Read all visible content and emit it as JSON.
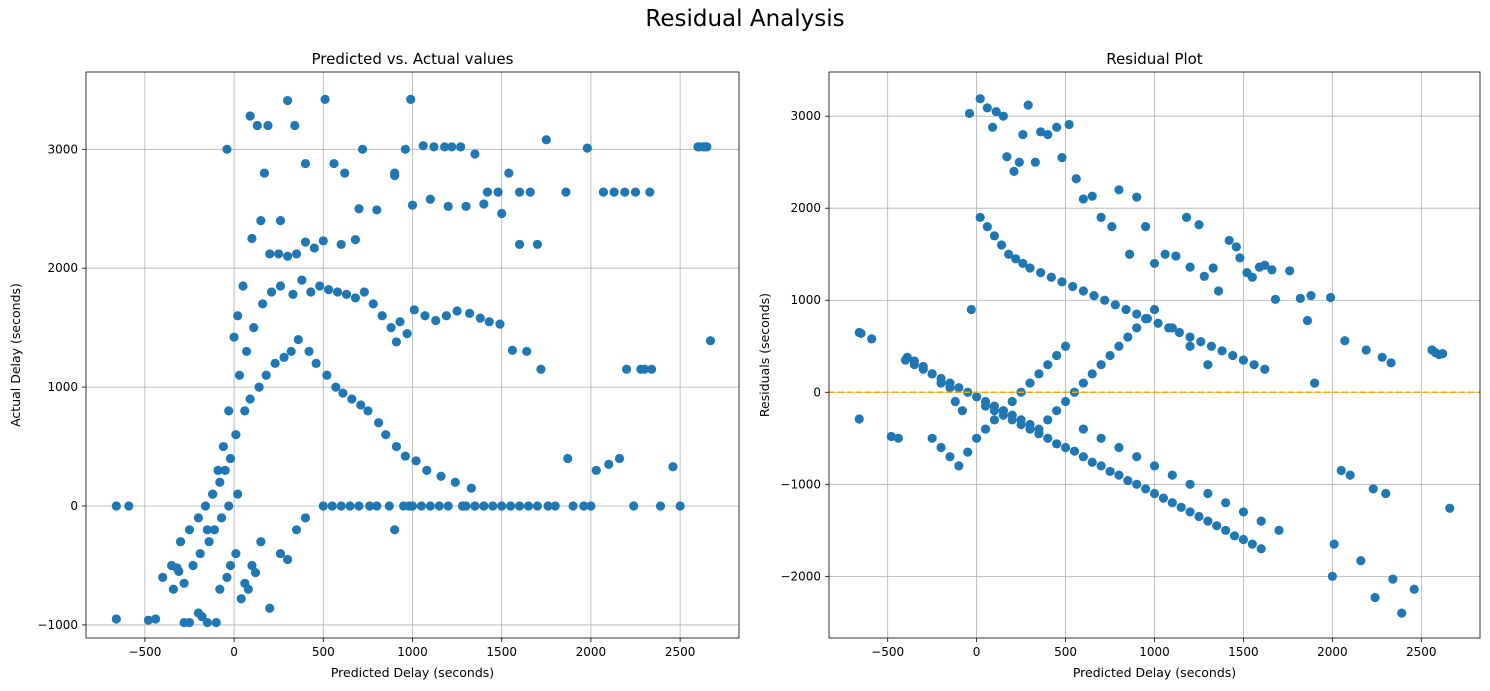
{
  "figure": {
    "title": "Residual Analysis"
  },
  "chart_data": [
    {
      "type": "scatter",
      "title": "Predicted vs. Actual values",
      "xlabel": "Predicted Delay (seconds)",
      "ylabel": "Actual Delay (seconds)",
      "xlim": [
        -830,
        2830
      ],
      "ylim": [
        -1110,
        3650
      ],
      "xticks": [
        -500,
        0,
        500,
        1000,
        1500,
        2000,
        2500
      ],
      "yticks": [
        -1000,
        0,
        1000,
        2000,
        3000
      ],
      "xtick_labels": [
        "−500",
        "0",
        "500",
        "1000",
        "1500",
        "2000",
        "2500"
      ],
      "ytick_labels": [
        "−1000",
        "0",
        "1000",
        "2000",
        "3000"
      ],
      "grid": true,
      "marker_color": "#1f77b4",
      "series": [
        {
          "x": [
            -660,
            -590,
            -660,
            -480,
            -440,
            -350,
            -320,
            -310,
            -280,
            -250,
            -200,
            -180,
            -150,
            -100,
            -80,
            -40,
            -20,
            10,
            40,
            60,
            80,
            100,
            120,
            150,
            200,
            260,
            300,
            350,
            400,
            500,
            550,
            600,
            650,
            700,
            760,
            800,
            870,
            900,
            950,
            980,
            1000,
            1050,
            1100,
            1150,
            1200,
            1280,
            1300,
            1350,
            1400,
            1450,
            1500,
            1550,
            1600,
            1650,
            1700,
            1760,
            1800,
            1870,
            1900,
            1960,
            2000,
            2030,
            2100,
            2160,
            2200,
            2240,
            2280,
            2300,
            2340,
            2390,
            2460,
            2500,
            2600,
            2630,
            2650,
            2670,
            -40,
            90,
            130,
            170,
            190,
            300,
            340,
            400,
            510,
            560,
            620,
            680,
            720,
            900,
            960,
            990,
            1060,
            1120,
            1180,
            1220,
            1270,
            1350,
            1420,
            1480,
            1540,
            1600,
            1660,
            1750,
            1860,
            1980,
            2070,
            2130,
            2190,
            2250,
            2330,
            2610,
            2640,
            0,
            20,
            50,
            100,
            150,
            200,
            250,
            300,
            350,
            400,
            450,
            500,
            600,
            700,
            800,
            900,
            1000,
            1100,
            1200,
            1300,
            1400,
            1500,
            1600,
            1700,
            -150,
            -120,
            -90,
            -60,
            -30,
            30,
            70,
            110,
            160,
            210,
            260,
            330,
            380,
            430,
            480,
            530,
            580,
            630,
            680,
            730,
            780,
            830,
            880,
            930,
            970,
            1010,
            1070,
            1130,
            1190,
            1250,
            1320,
            1380,
            1430,
            1490,
            1560,
            1640,
            1720,
            -300,
            -250,
            -200,
            -160,
            -120,
            -80,
            -50,
            -20,
            10,
            60,
            90,
            140,
            180,
            230,
            280,
            320,
            360,
            420,
            460,
            520,
            570,
            610,
            660,
            710,
            750,
            810,
            850,
            910,
            960,
            1020,
            1080,
            1160,
            1240,
            1330,
            -400,
            -340,
            -280,
            -230,
            -190,
            -140,
            -110,
            -70,
            -30,
            20,
            260,
            910
          ],
          "y": [
            -950,
            0,
            0,
            -960,
            -950,
            -500,
            -520,
            -550,
            -980,
            -980,
            -900,
            -930,
            -980,
            -980,
            -700,
            -600,
            -500,
            -400,
            -780,
            -650,
            -700,
            -500,
            -560,
            -300,
            -860,
            -400,
            -450,
            -200,
            -100,
            0,
            0,
            0,
            0,
            0,
            0,
            0,
            0,
            -200,
            0,
            0,
            0,
            0,
            0,
            0,
            0,
            0,
            0,
            0,
            0,
            0,
            0,
            0,
            0,
            0,
            0,
            0,
            0,
            400,
            0,
            0,
            0,
            300,
            350,
            400,
            1150,
            0,
            1150,
            1150,
            1150,
            0,
            330,
            0,
            3020,
            3020,
            3020,
            1390,
            3000,
            3280,
            3200,
            2800,
            3200,
            3410,
            3200,
            2880,
            3420,
            2880,
            2800,
            2240,
            3000,
            2800,
            3000,
            3420,
            3030,
            3020,
            3020,
            3020,
            3020,
            2960,
            2640,
            2640,
            2800,
            2640,
            2640,
            3080,
            2640,
            3010,
            2640,
            2640,
            2640,
            2640,
            2640,
            3020,
            3020,
            1420,
            1600,
            1850,
            2250,
            2400,
            2120,
            2120,
            2100,
            2120,
            2220,
            2170,
            2230,
            2200,
            2500,
            2490,
            2780,
            2530,
            2580,
            2520,
            2520,
            2540,
            2460,
            2200,
            2200,
            -200,
            100,
            300,
            500,
            800,
            1100,
            1300,
            1500,
            1700,
            1800,
            1850,
            1780,
            1900,
            1800,
            1850,
            1820,
            1800,
            1780,
            1750,
            1800,
            1700,
            1600,
            1500,
            1550,
            1450,
            1650,
            1600,
            1560,
            1600,
            1640,
            1620,
            1580,
            1550,
            1530,
            1310,
            1300,
            1150,
            -300,
            -200,
            -100,
            0,
            100,
            200,
            300,
            400,
            600,
            800,
            900,
            1000,
            1100,
            1200,
            1250,
            1300,
            1400,
            1300,
            1200,
            1100,
            1000,
            950,
            900,
            850,
            800,
            700,
            600,
            500,
            420,
            380,
            300,
            250,
            200,
            150,
            -600,
            -700,
            -650,
            -500,
            -400,
            -300,
            -200,
            -100,
            0,
            100,
            2400,
            1380
          ]
        }
      ]
    },
    {
      "type": "scatter",
      "title": "Residual Plot",
      "xlabel": "Predicted Delay (seconds)",
      "ylabel": "Residuals (seconds)",
      "xlim": [
        -830,
        2830
      ],
      "ylim": [
        -2670,
        3480
      ],
      "xticks": [
        -500,
        0,
        500,
        1000,
        1500,
        2000,
        2500
      ],
      "yticks": [
        -2000,
        -1000,
        0,
        1000,
        2000,
        3000
      ],
      "xtick_labels": [
        "−500",
        "0",
        "500",
        "1000",
        "1500",
        "2000",
        "2500"
      ],
      "ytick_labels": [
        "−2000",
        "−1000",
        "0",
        "1000",
        "2000",
        "3000"
      ],
      "grid": true,
      "marker_color": "#1f77b4",
      "reference_line": {
        "y": 0,
        "color": "#ffa500",
        "style": "dashed"
      },
      "series": [
        {
          "x": [
            -660,
            -650,
            -590,
            -660,
            -480,
            -440,
            -390,
            -350,
            -300,
            -250,
            -200,
            -150,
            -120,
            -80,
            -40,
            -30,
            20,
            60,
            90,
            110,
            150,
            170,
            210,
            240,
            260,
            290,
            330,
            360,
            400,
            450,
            480,
            520,
            560,
            600,
            650,
            700,
            760,
            800,
            860,
            900,
            950,
            1000,
            1060,
            1120,
            1180,
            1200,
            1250,
            1280,
            1330,
            1360,
            1420,
            1460,
            1480,
            1520,
            1550,
            1590,
            1620,
            1660,
            1680,
            1760,
            1820,
            1860,
            1880,
            1900,
            1990,
            2000,
            2010,
            2050,
            2070,
            2100,
            2160,
            2190,
            2230,
            2240,
            2280,
            2300,
            2330,
            2340,
            2390,
            2460,
            2560,
            2580,
            2600,
            2620,
            2660,
            20,
            60,
            100,
            140,
            180,
            220,
            260,
            300,
            360,
            420,
            480,
            540,
            600,
            660,
            720,
            780,
            840,
            900,
            960,
            1020,
            1080,
            1140,
            1200,
            1260,
            1320,
            1380,
            1440,
            1500,
            1560,
            1620,
            50,
            100,
            150,
            200,
            250,
            300,
            350,
            400,
            450,
            500,
            550,
            600,
            650,
            700,
            750,
            800,
            850,
            900,
            950,
            1000,
            1050,
            1100,
            1150,
            1200,
            1250,
            1300,
            1350,
            1400,
            1450,
            1500,
            1550,
            1600,
            -400,
            -350,
            -300,
            -250,
            -200,
            -150,
            -100,
            -50,
            0,
            50,
            100,
            150,
            200,
            250,
            300,
            350,
            400,
            450,
            500,
            550,
            600,
            650,
            700,
            750,
            800,
            850,
            900,
            950,
            1000,
            1100,
            1200,
            1300,
            -250,
            -200,
            -150,
            -100,
            -50,
            0,
            50,
            100,
            150,
            200,
            250,
            300,
            350,
            400,
            450,
            500,
            600,
            700,
            800,
            900,
            1000,
            1100,
            1200,
            1300,
            1400,
            1500,
            1600,
            1700
          ],
          "y": [
            650,
            640,
            580,
            -290,
            -480,
            -500,
            380,
            340,
            280,
            200,
            100,
            50,
            -100,
            -200,
            3030,
            900,
            3190,
            3090,
            2880,
            3050,
            3000,
            2560,
            2400,
            2500,
            2800,
            3120,
            2500,
            2830,
            2800,
            2880,
            2550,
            2910,
            2320,
            2100,
            2130,
            1900,
            1800,
            2200,
            1500,
            2120,
            1800,
            1400,
            1500,
            1480,
            1900,
            1360,
            1820,
            1260,
            1350,
            1100,
            1650,
            1580,
            1460,
            1300,
            1250,
            1360,
            1380,
            1330,
            1010,
            1320,
            1020,
            780,
            1050,
            100,
            1030,
            -2000,
            -1650,
            -850,
            560,
            -900,
            -1830,
            460,
            -1050,
            -2230,
            380,
            -1100,
            320,
            -2030,
            -2400,
            -2140,
            460,
            430,
            410,
            420,
            -1260,
            1900,
            1800,
            1700,
            1600,
            1500,
            1450,
            1400,
            1350,
            1300,
            1250,
            1200,
            1150,
            1100,
            1050,
            1000,
            950,
            900,
            850,
            800,
            750,
            700,
            650,
            600,
            550,
            500,
            450,
            400,
            350,
            300,
            250,
            -150,
            -200,
            -250,
            -300,
            -350,
            -400,
            -450,
            -500,
            -560,
            -600,
            -640,
            -700,
            -760,
            -800,
            -860,
            -900,
            -960,
            -1000,
            -1050,
            -1100,
            -1150,
            -1200,
            -1250,
            -1300,
            -1350,
            -1400,
            -1450,
            -1500,
            -1560,
            -1600,
            -1650,
            -1700,
            350,
            300,
            250,
            200,
            150,
            100,
            50,
            0,
            -50,
            -100,
            -150,
            -200,
            -250,
            -300,
            -350,
            -400,
            -300,
            -200,
            -100,
            0,
            100,
            200,
            300,
            400,
            500,
            600,
            700,
            800,
            900,
            700,
            500,
            300,
            -500,
            -600,
            -700,
            -800,
            -650,
            -500,
            -400,
            -300,
            -200,
            -100,
            0,
            100,
            200,
            300,
            400,
            500,
            -400,
            -500,
            -600,
            -700,
            -800,
            -900,
            -1000,
            -1100,
            -1200,
            -1300,
            -1400,
            -1500
          ]
        }
      ]
    }
  ]
}
